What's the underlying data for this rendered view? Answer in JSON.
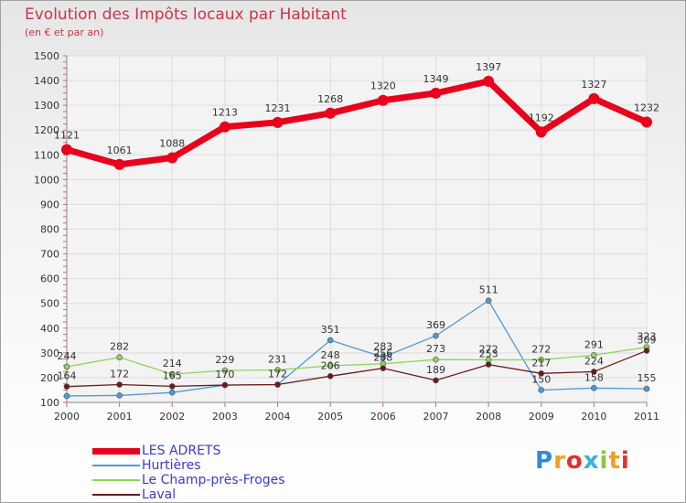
{
  "header": {
    "title": "Evolution des Impôts locaux par Habitant",
    "subtitle": "(en € et par an)"
  },
  "logo": {
    "text": "Proxiti",
    "colors": [
      "#2e8ad8",
      "#f0a020",
      "#e2312c",
      "#3ab0e0",
      "#8cc63e",
      "#f0a020",
      "#e2312c"
    ]
  },
  "chart_data": {
    "type": "line",
    "categories": [
      "2000",
      "2001",
      "2002",
      "2003",
      "2004",
      "2005",
      "2006",
      "2007",
      "2008",
      "2009",
      "2010",
      "2011"
    ],
    "ylim": [
      100,
      1500
    ],
    "yticks": [
      100,
      200,
      300,
      400,
      500,
      600,
      700,
      800,
      900,
      1000,
      1100,
      1200,
      1300,
      1400,
      1500
    ],
    "grid": true,
    "legend_position": "bottom-left",
    "series": [
      {
        "name": "LES ADRETS",
        "color": "#e8001c",
        "width": 7,
        "marker": 6,
        "values": [
          1121,
          1061,
          1088,
          1213,
          1231,
          1268,
          1320,
          1349,
          1397,
          1192,
          1327,
          1232
        ],
        "labels": [
          "1121",
          "1061",
          "1088",
          "1213",
          "1231",
          "1268",
          "1320",
          "1349",
          "1397",
          "1192",
          "1327",
          "1232"
        ]
      },
      {
        "name": "Hurtières",
        "color": "#4f9ad6",
        "width": 1.3,
        "marker": 3,
        "values": [
          126,
          128,
          140,
          170,
          172,
          351,
          283,
          369,
          511,
          150,
          158,
          155
        ],
        "labels": [
          "",
          "",
          "",
          "",
          "",
          "351",
          "283",
          "369",
          "511",
          "150",
          "158",
          "155"
        ]
      },
      {
        "name": "Le Champ-près-Froges",
        "color": "#8ed45a",
        "width": 1.3,
        "marker": 3,
        "values": [
          244,
          282,
          214,
          229,
          231,
          248,
          256,
          273,
          272,
          272,
          291,
          323
        ],
        "labels": [
          "244",
          "282",
          "214",
          "229",
          "231",
          "248",
          "256",
          "273",
          "272",
          "272",
          "291",
          "323"
        ]
      },
      {
        "name": "Laval",
        "color": "#6b1a1a",
        "width": 1.3,
        "marker": 3,
        "values": [
          164,
          172,
          165,
          170,
          172,
          206,
          238,
          189,
          253,
          217,
          224,
          309
        ],
        "labels": [
          "164",
          "172",
          "165",
          "170",
          "172",
          "206",
          "238",
          "189",
          "253",
          "217",
          "224",
          "309"
        ]
      }
    ]
  }
}
